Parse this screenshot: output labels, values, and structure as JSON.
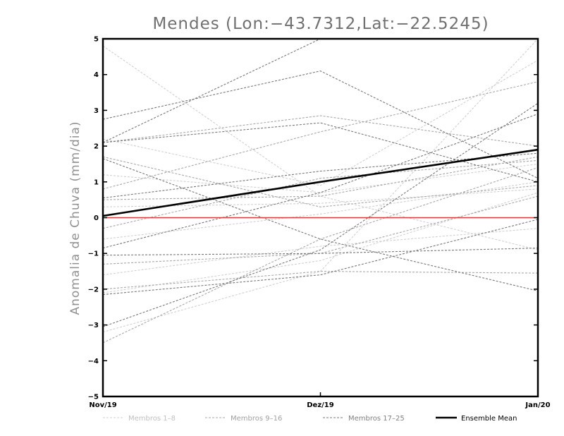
{
  "chart_data": {
    "type": "line",
    "title": "Mendes (Lon:−43.7312,Lat:−22.5245)",
    "xlabel": "",
    "ylabel": "Anomalia de Chuva (mm/dia)",
    "categories": [
      "Nov/19",
      "Dez/19",
      "Jan/20"
    ],
    "ylim": [
      -5,
      5
    ],
    "yticks": [
      5,
      4,
      3,
      2,
      1,
      0,
      -1,
      -2,
      -3,
      -4,
      -5
    ],
    "ytick_labels": [
      "5",
      "4",
      "3",
      "2",
      "1",
      "0",
      "−1",
      "−2",
      "−3",
      "−4",
      "−5"
    ],
    "zero_line_color": "#e03c3c",
    "groups": [
      {
        "name": "Membros 1-8",
        "label": "Membros 1–8",
        "color": "#d0d0d0"
      },
      {
        "name": "Membros 9-16",
        "label": "Membros 9–16",
        "color": "#a8a8a8"
      },
      {
        "name": "Membros 17-25",
        "label": "Membros 17–25",
        "color": "#787878"
      },
      {
        "name": "Ensemble Mean",
        "label": "Ensemble Mean",
        "color": "#000000"
      }
    ],
    "series": [
      {
        "name": "m01",
        "group": 0,
        "values": [
          4.8,
          0.6,
          -0.9
        ]
      },
      {
        "name": "m02",
        "group": 0,
        "values": [
          1.2,
          0.7,
          1.5
        ]
      },
      {
        "name": "m03",
        "group": 0,
        "values": [
          -1.6,
          -0.8,
          -0.3
        ]
      },
      {
        "name": "m04",
        "group": 0,
        "values": [
          -2.1,
          -1.2,
          0.7
        ]
      },
      {
        "name": "m05",
        "group": 0,
        "values": [
          -3.2,
          -1.5,
          5.0
        ]
      },
      {
        "name": "m06",
        "group": 0,
        "values": [
          0.3,
          0.4,
          0.8
        ]
      },
      {
        "name": "m07",
        "group": 0,
        "values": [
          -0.6,
          0.1,
          1.0
        ]
      },
      {
        "name": "m08",
        "group": 0,
        "values": [
          2.2,
          0.9,
          4.4
        ]
      },
      {
        "name": "m09",
        "group": 1,
        "values": [
          2.1,
          2.85,
          2.0
        ]
      },
      {
        "name": "m10",
        "group": 1,
        "values": [
          -1.3,
          -1.0,
          0.6
        ]
      },
      {
        "name": "m11",
        "group": 1,
        "values": [
          0.8,
          2.4,
          3.8
        ]
      },
      {
        "name": "m12",
        "group": 1,
        "values": [
          -2.0,
          -1.5,
          -1.55
        ]
      },
      {
        "name": "m13",
        "group": 1,
        "values": [
          0.5,
          0.6,
          1.7
        ]
      },
      {
        "name": "m14",
        "group": 1,
        "values": [
          -3.5,
          -0.6,
          1.4
        ]
      },
      {
        "name": "m15",
        "group": 1,
        "values": [
          1.7,
          0.3,
          0.9
        ]
      },
      {
        "name": "m16",
        "group": 1,
        "values": [
          -0.3,
          1.1,
          1.6
        ]
      },
      {
        "name": "m17",
        "group": 2,
        "values": [
          2.75,
          4.1,
          1.1
        ]
      },
      {
        "name": "m18",
        "group": 2,
        "values": [
          2.1,
          5.0,
          5.0
        ]
      },
      {
        "name": "m19",
        "group": 2,
        "values": [
          1.65,
          -0.6,
          -2.05
        ]
      },
      {
        "name": "m20",
        "group": 2,
        "values": [
          2.1,
          2.65,
          1.0
        ]
      },
      {
        "name": "m21",
        "group": 2,
        "values": [
          -1.05,
          -1.0,
          -0.85
        ]
      },
      {
        "name": "m22",
        "group": 2,
        "values": [
          -2.15,
          -1.6,
          -0.05
        ]
      },
      {
        "name": "m23",
        "group": 2,
        "values": [
          -3.05,
          -0.9,
          3.2
        ]
      },
      {
        "name": "m24",
        "group": 2,
        "values": [
          0.55,
          1.3,
          1.8
        ]
      },
      {
        "name": "m25",
        "group": 2,
        "values": [
          -0.85,
          0.7,
          2.9
        ]
      },
      {
        "name": "Ensemble Mean",
        "group": 3,
        "values": [
          0.05,
          1.0,
          1.9
        ]
      }
    ]
  }
}
